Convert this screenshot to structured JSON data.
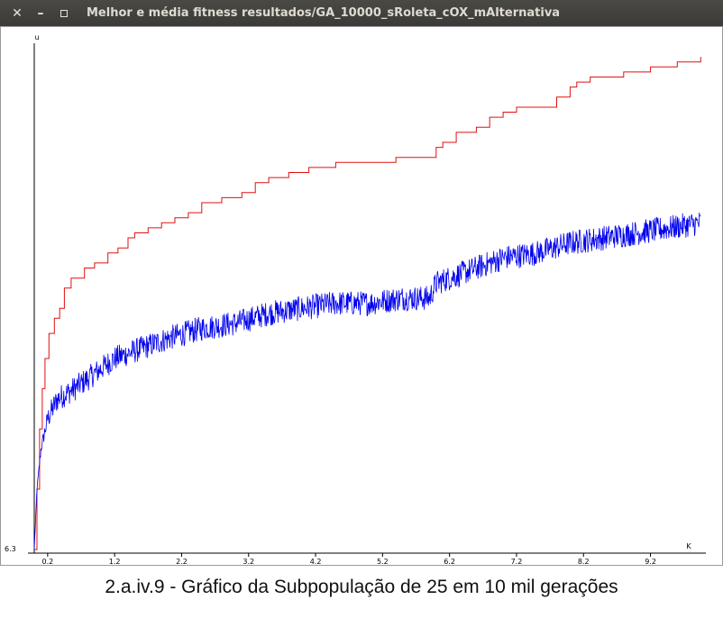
{
  "window": {
    "title": "Melhor e média fitness resultados/GA_10000_sRoleta_cOX_mAlternativa"
  },
  "caption": "2.a.iv.9 - Gráfico da Subpopulação de 25 em 10 mil gerações",
  "chart_data": {
    "type": "line",
    "title": "",
    "xlabel": "K",
    "ylabel": "u",
    "y_bottom_label": "6.3",
    "x_ticks": [
      "0.2",
      "1.2",
      "2.2",
      "3.2",
      "4.2",
      "5.2",
      "6.2",
      "7.2",
      "8.2",
      "9.2"
    ],
    "x_tick_values": [
      0.2,
      1.2,
      2.2,
      3.2,
      4.2,
      5.2,
      6.2,
      7.2,
      8.2,
      9.2
    ],
    "xlim": [
      0,
      10
    ],
    "grid": false,
    "legend": "none",
    "y_values_note_units": "approximate relative fitness (no y scale printed)",
    "series": [
      {
        "color": "#e01010",
        "step": true,
        "points": [
          [
            0.0,
            0.0
          ],
          [
            0.04,
            0.12
          ],
          [
            0.08,
            0.24
          ],
          [
            0.12,
            0.32
          ],
          [
            0.16,
            0.38
          ],
          [
            0.22,
            0.43
          ],
          [
            0.3,
            0.46
          ],
          [
            0.38,
            0.48
          ],
          [
            0.45,
            0.52
          ],
          [
            0.55,
            0.54
          ],
          [
            0.75,
            0.56
          ],
          [
            0.9,
            0.57
          ],
          [
            1.1,
            0.59
          ],
          [
            1.25,
            0.6
          ],
          [
            1.4,
            0.62
          ],
          [
            1.5,
            0.63
          ],
          [
            1.7,
            0.64
          ],
          [
            1.9,
            0.65
          ],
          [
            2.1,
            0.66
          ],
          [
            2.3,
            0.67
          ],
          [
            2.5,
            0.69
          ],
          [
            2.8,
            0.7
          ],
          [
            3.1,
            0.71
          ],
          [
            3.3,
            0.73
          ],
          [
            3.5,
            0.74
          ],
          [
            3.8,
            0.75
          ],
          [
            4.1,
            0.76
          ],
          [
            4.5,
            0.77
          ],
          [
            5.0,
            0.77
          ],
          [
            5.4,
            0.78
          ],
          [
            5.9,
            0.78
          ],
          [
            6.0,
            0.8
          ],
          [
            6.1,
            0.81
          ],
          [
            6.3,
            0.83
          ],
          [
            6.6,
            0.84
          ],
          [
            6.8,
            0.86
          ],
          [
            7.0,
            0.87
          ],
          [
            7.2,
            0.88
          ],
          [
            7.6,
            0.88
          ],
          [
            7.8,
            0.9
          ],
          [
            8.0,
            0.92
          ],
          [
            8.1,
            0.93
          ],
          [
            8.3,
            0.94
          ],
          [
            8.8,
            0.95
          ],
          [
            9.2,
            0.96
          ],
          [
            9.6,
            0.97
          ],
          [
            9.95,
            0.98
          ]
        ]
      },
      {
        "color": "#0000ee",
        "step": false,
        "noise": 0.025,
        "points": [
          [
            0.0,
            0.0
          ],
          [
            0.04,
            0.12
          ],
          [
            0.1,
            0.2
          ],
          [
            0.2,
            0.26
          ],
          [
            0.35,
            0.3
          ],
          [
            0.6,
            0.32
          ],
          [
            0.9,
            0.35
          ],
          [
            1.2,
            0.38
          ],
          [
            1.6,
            0.4
          ],
          [
            2.0,
            0.42
          ],
          [
            2.5,
            0.44
          ],
          [
            3.0,
            0.45
          ],
          [
            3.5,
            0.47
          ],
          [
            4.0,
            0.48
          ],
          [
            4.5,
            0.49
          ],
          [
            5.0,
            0.49
          ],
          [
            5.5,
            0.5
          ],
          [
            5.9,
            0.5
          ],
          [
            6.0,
            0.53
          ],
          [
            6.2,
            0.54
          ],
          [
            6.6,
            0.56
          ],
          [
            7.0,
            0.58
          ],
          [
            7.5,
            0.59
          ],
          [
            8.0,
            0.61
          ],
          [
            8.5,
            0.62
          ],
          [
            9.0,
            0.63
          ],
          [
            9.5,
            0.64
          ],
          [
            9.95,
            0.65
          ]
        ]
      }
    ]
  }
}
